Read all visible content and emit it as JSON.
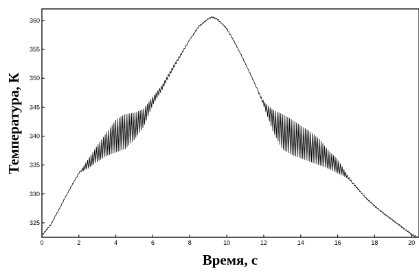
{
  "chart_data": {
    "type": "line",
    "title": "",
    "xlabel": "Время, с",
    "ylabel": "Температура, К",
    "xlim": [
      0,
      20.4
    ],
    "ylim": [
      322.5,
      362
    ],
    "xticks": [
      0,
      2,
      4,
      6,
      8,
      10,
      12,
      14,
      16,
      18,
      20
    ],
    "yticks": [
      325,
      330,
      335,
      340,
      345,
      350,
      355,
      360
    ],
    "xtick_labels": [
      "0",
      "2",
      "4",
      "6",
      "8",
      "10",
      "12",
      "14",
      "16",
      "18",
      "20"
    ],
    "ytick_labels": [
      "325",
      "330",
      "335",
      "340",
      "345",
      "350",
      "355",
      "360"
    ],
    "grid": false,
    "series": [
      {
        "envelope_upper": {
          "x": [
            0.0,
            0.5,
            1.0,
            1.5,
            2.0,
            2.5,
            3.0,
            3.5,
            4.0,
            4.5,
            5.0,
            5.5,
            6.0,
            6.5,
            7.0,
            7.5,
            8.0,
            8.5,
            9.0,
            9.2,
            9.5,
            10.0,
            10.5,
            11.0,
            11.5,
            12.0,
            12.5,
            13.0,
            13.5,
            14.0,
            14.5,
            15.0,
            15.5,
            16.0,
            16.5,
            17.0,
            17.5,
            18.0,
            18.5,
            19.0,
            19.5,
            20.0,
            20.3
          ],
          "y": [
            322.8,
            324.8,
            327.8,
            330.8,
            333.6,
            336.0,
            338.4,
            340.6,
            342.8,
            343.8,
            344.0,
            344.7,
            346.8,
            348.8,
            351.6,
            354.2,
            356.8,
            359.0,
            360.3,
            360.6,
            360.2,
            358.6,
            355.8,
            352.6,
            349.2,
            346.0,
            344.5,
            343.8,
            342.9,
            341.8,
            340.8,
            339.5,
            337.5,
            336.0,
            333.4,
            331.2,
            329.4,
            327.9,
            326.6,
            325.4,
            324.2,
            323.0,
            322.5
          ]
        },
        "envelope_lower": {
          "x": [
            0.0,
            0.5,
            1.0,
            1.5,
            2.0,
            2.5,
            3.0,
            3.5,
            4.0,
            4.5,
            5.0,
            5.5,
            6.0,
            6.5,
            7.0,
            7.5,
            8.0,
            8.5,
            9.0,
            9.2,
            9.5,
            10.0,
            10.5,
            11.0,
            11.5,
            12.0,
            12.5,
            13.0,
            13.5,
            14.0,
            14.5,
            15.0,
            15.5,
            16.0,
            16.5,
            17.0,
            17.5,
            18.0,
            18.5,
            19.0,
            19.5,
            20.0,
            20.3
          ],
          "y": [
            322.8,
            324.8,
            327.8,
            330.8,
            333.6,
            334.4,
            335.6,
            336.6,
            337.2,
            337.8,
            339.4,
            341.6,
            345.4,
            348.0,
            351.0,
            353.8,
            356.6,
            359.0,
            360.3,
            360.6,
            360.2,
            358.6,
            355.8,
            352.6,
            349.2,
            345.2,
            340.8,
            337.8,
            336.8,
            336.2,
            335.6,
            335.0,
            334.4,
            333.6,
            332.8,
            331.2,
            329.4,
            327.9,
            326.6,
            325.4,
            324.2,
            323.0,
            322.5
          ]
        },
        "oscillation_period_s": 0.19
      }
    ]
  }
}
